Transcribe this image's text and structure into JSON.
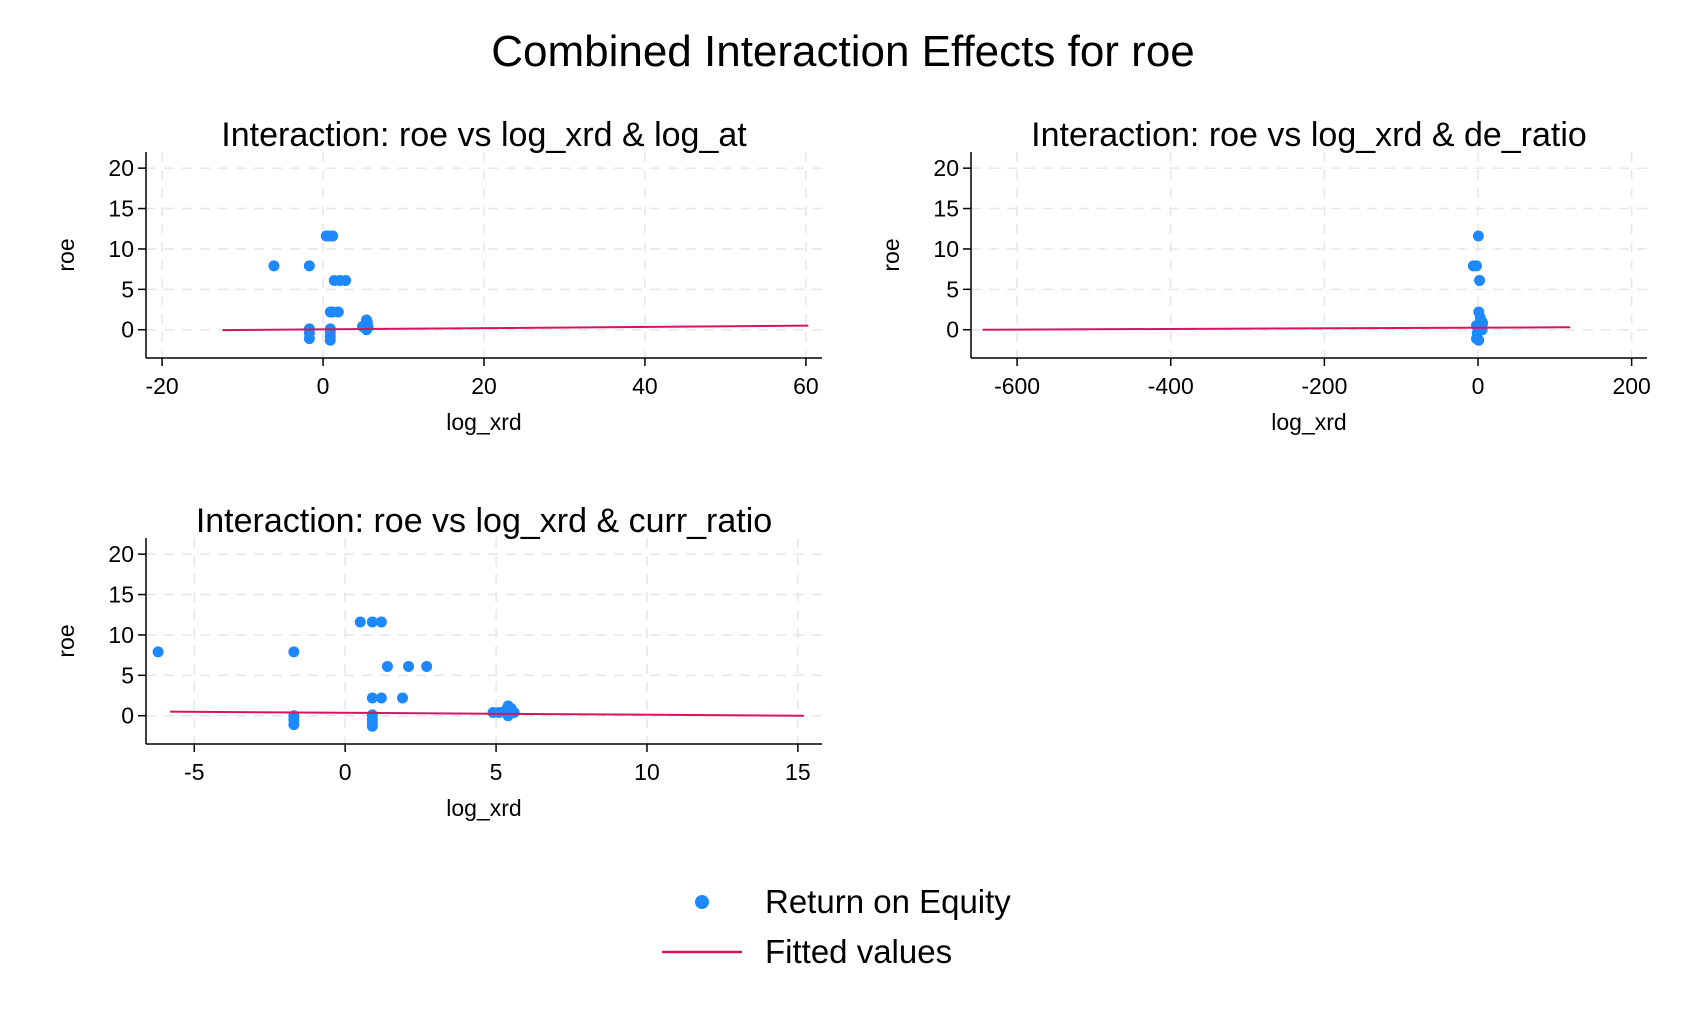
{
  "title": "Combined Interaction Effects for roe",
  "colors": {
    "point": "#1e88ff",
    "fit": "#d6145f",
    "grid": "#e6e6e6",
    "axis": "#000000"
  },
  "legend": {
    "placement": "bottom-center",
    "items": [
      {
        "label": "Return on Equity",
        "kind": "point"
      },
      {
        "label": "Fitted values",
        "kind": "line"
      }
    ]
  },
  "chart_data": [
    {
      "type": "scatter",
      "title": "Interaction: roe vs log_xrd & log_at",
      "xlabel": "log_xrd",
      "ylabel": "roe",
      "xlim": [
        -22,
        62
      ],
      "ylim": [
        -3.5,
        22
      ],
      "xticks": [
        -20,
        0,
        20,
        40,
        60
      ],
      "yticks": [
        0,
        5,
        10,
        15,
        20
      ],
      "grid": true,
      "points": [
        [
          -6.1,
          7.9
        ],
        [
          -1.7,
          7.9
        ],
        [
          0.4,
          11.6
        ],
        [
          0.8,
          11.6
        ],
        [
          1.2,
          11.6
        ],
        [
          1.4,
          6.1
        ],
        [
          2.1,
          6.1
        ],
        [
          2.8,
          6.1
        ],
        [
          0.9,
          2.2
        ],
        [
          1.2,
          2.2
        ],
        [
          1.9,
          2.2
        ],
        [
          -1.7,
          0.1
        ],
        [
          -1.7,
          -0.4
        ],
        [
          -1.7,
          -1.1
        ],
        [
          0.9,
          0.1
        ],
        [
          0.9,
          -0.3
        ],
        [
          0.9,
          -0.8
        ],
        [
          0.9,
          -1.3
        ],
        [
          4.9,
          0.4
        ],
        [
          5.1,
          0.4
        ],
        [
          5.3,
          0.6
        ],
        [
          5.4,
          1.2
        ],
        [
          5.5,
          0.9
        ],
        [
          5.4,
          0.0
        ],
        [
          5.6,
          0.3
        ]
      ],
      "fit": [
        [
          -12.5,
          -0.05
        ],
        [
          60.3,
          0.5
        ]
      ]
    },
    {
      "type": "scatter",
      "title": "Interaction: roe vs log_xrd & de_ratio",
      "xlabel": "log_xrd",
      "ylabel": "roe",
      "xlim": [
        -660,
        220
      ],
      "ylim": [
        -3.5,
        22
      ],
      "xticks": [
        -600,
        -400,
        -200,
        0,
        200
      ],
      "yticks": [
        0,
        5,
        10,
        15,
        20
      ],
      "grid": true,
      "points": [
        [
          -6,
          7.9
        ],
        [
          -2,
          7.9
        ],
        [
          0.5,
          11.6
        ],
        [
          2,
          6.1
        ],
        [
          1,
          2.2
        ],
        [
          3,
          1.5
        ],
        [
          -2,
          0.5
        ],
        [
          -1,
          -0.4
        ],
        [
          -2,
          -1.1
        ],
        [
          0.9,
          -1.3
        ],
        [
          1,
          0.2
        ],
        [
          3,
          0.6
        ],
        [
          4,
          0.2
        ],
        [
          5,
          1.0
        ],
        [
          5,
          0.4
        ],
        [
          5.4,
          0.0
        ],
        [
          6,
          0.8
        ]
      ],
      "fit": [
        [
          -645,
          0.0
        ],
        [
          120,
          0.3
        ]
      ]
    },
    {
      "type": "scatter",
      "title": "Interaction: roe vs log_xrd & curr_ratio",
      "xlabel": "log_xrd",
      "ylabel": "roe",
      "xlim": [
        -6.6,
        15.8
      ],
      "ylim": [
        -3.5,
        22
      ],
      "xticks": [
        -5,
        0,
        5,
        10,
        15
      ],
      "yticks": [
        0,
        5,
        10,
        15,
        20
      ],
      "grid": true,
      "points": [
        [
          -6.2,
          7.9
        ],
        [
          -1.7,
          7.9
        ],
        [
          0.5,
          11.6
        ],
        [
          0.9,
          11.6
        ],
        [
          1.2,
          11.6
        ],
        [
          1.4,
          6.1
        ],
        [
          2.1,
          6.1
        ],
        [
          2.7,
          6.1
        ],
        [
          0.9,
          2.2
        ],
        [
          1.2,
          2.2
        ],
        [
          1.9,
          2.2
        ],
        [
          -1.7,
          0.0
        ],
        [
          -1.7,
          -0.5
        ],
        [
          -1.7,
          -1.1
        ],
        [
          0.9,
          0.1
        ],
        [
          0.9,
          -0.4
        ],
        [
          0.9,
          -0.8
        ],
        [
          0.9,
          -1.3
        ],
        [
          4.9,
          0.4
        ],
        [
          5.1,
          0.4
        ],
        [
          5.3,
          0.6
        ],
        [
          5.4,
          1.2
        ],
        [
          5.5,
          0.9
        ],
        [
          5.4,
          0.0
        ],
        [
          5.6,
          0.4
        ]
      ],
      "fit": [
        [
          -5.8,
          0.5
        ],
        [
          15.2,
          0.0
        ]
      ]
    }
  ]
}
